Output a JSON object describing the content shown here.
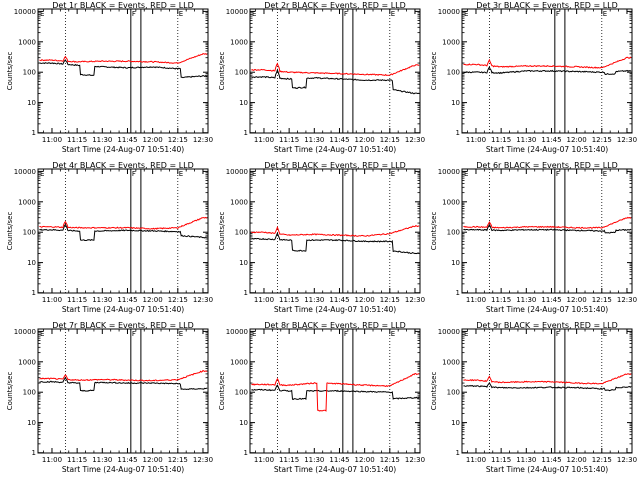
{
  "figure": {
    "background": "#ffffff",
    "axis_color": "#000000",
    "events_color": "#000000",
    "lld_color": "#ff0000"
  },
  "chart_data": [
    {
      "type": "line",
      "detector": "1r",
      "title": "Det 1r BLACK = Events, RED = LLD",
      "xlabel": "Start Time (24-Aug-07 10:51:40)",
      "ylabel": "Counts/sec",
      "x_tick_labels": [
        "11:00",
        "11:15",
        "11:30",
        "11:45",
        "12:00",
        "12:15",
        "12:30"
      ],
      "x_tick_minutes": [
        0,
        15,
        30,
        45,
        60,
        75,
        90
      ],
      "xlim_minutes": [
        -8.33,
        93
      ],
      "y_scale": "log",
      "ylim": [
        1,
        12000
      ],
      "y_tick_labels": [
        "1",
        "10",
        "100",
        "1000",
        "10000"
      ],
      "vertical_markers": {
        "dotted_minutes": [
          8,
          75
        ],
        "solid_minutes": [
          47,
          53
        ],
        "flags": [
          {
            "minute": 47,
            "label": "F"
          },
          {
            "minute": 75,
            "label": "E"
          }
        ]
      },
      "corner_labels": {
        "top_left": "E"
      },
      "series": [
        {
          "name": "Events",
          "values_at_ticks": [
            200,
            170,
            150,
            140,
            150,
            130,
            150
          ],
          "events": [
            {
              "type": "dip",
              "start": 17,
              "end": 25,
              "factor": 0.5
            },
            {
              "type": "step",
              "start": 77,
              "end": 93,
              "factor": 0.5
            },
            {
              "type": "spike",
              "at": 8,
              "factor": 1.4
            }
          ]
        },
        {
          "name": "LLD",
          "values_at_ticks": [
            250,
            220,
            230,
            230,
            220,
            200,
            400
          ],
          "events": [
            {
              "type": "spike",
              "at": 8,
              "factor": 1.4
            }
          ]
        }
      ]
    },
    {
      "type": "line",
      "detector": "2r",
      "title": "Det 2r BLACK = Events, RED = LLD",
      "xlabel": "Start Time (24-Aug-07 10:51:40)",
      "ylabel": "Counts/sec",
      "x_tick_labels": [
        "11:00",
        "11:15",
        "11:30",
        "11:45",
        "12:00",
        "12:15",
        "12:30"
      ],
      "x_tick_minutes": [
        0,
        15,
        30,
        45,
        60,
        75,
        90
      ],
      "xlim_minutes": [
        -8.33,
        93
      ],
      "y_scale": "log",
      "ylim": [
        1,
        12000
      ],
      "y_tick_labels": [
        "1",
        "10",
        "100",
        "1000",
        "10000"
      ],
      "vertical_markers": {
        "dotted_minutes": [
          8,
          75
        ],
        "solid_minutes": [
          47,
          53
        ],
        "flags": [
          {
            "minute": 47,
            "label": "F"
          },
          {
            "minute": 75,
            "label": "E"
          }
        ]
      },
      "corner_labels": {
        "top_left": "E"
      },
      "series": [
        {
          "name": "Events",
          "values_at_ticks": [
            70,
            60,
            65,
            60,
            55,
            55,
            40
          ],
          "events": [
            {
              "type": "dip",
              "start": 17,
              "end": 25,
              "factor": 0.5
            },
            {
              "type": "step",
              "start": 77,
              "end": 93,
              "factor": 0.5
            },
            {
              "type": "spike",
              "at": 8,
              "factor": 1.8
            }
          ]
        },
        {
          "name": "LLD",
          "values_at_ticks": [
            120,
            100,
            95,
            90,
            85,
            80,
            170
          ],
          "events": [
            {
              "type": "spike",
              "at": 8,
              "factor": 1.8
            }
          ]
        }
      ]
    },
    {
      "type": "line",
      "detector": "3r",
      "title": "Det 3r BLACK = Events, RED = LLD",
      "xlabel": "Start Time (24-Aug-07 10:51:40)",
      "ylabel": "Counts/sec",
      "x_tick_labels": [
        "11:00",
        "11:15",
        "11:30",
        "11:45",
        "12:00",
        "12:15",
        "12:30"
      ],
      "x_tick_minutes": [
        0,
        15,
        30,
        45,
        60,
        75,
        90
      ],
      "xlim_minutes": [
        -8.33,
        93
      ],
      "y_scale": "log",
      "ylim": [
        1,
        12000
      ],
      "y_tick_labels": [
        "1",
        "10",
        "100",
        "1000",
        "10000"
      ],
      "vertical_markers": {
        "dotted_minutes": [
          8,
          75
        ],
        "solid_minutes": [
          47,
          53
        ],
        "flags": [
          {
            "minute": 47,
            "label": "F"
          },
          {
            "minute": 75,
            "label": "E"
          }
        ]
      },
      "corner_labels": {
        "top_left": "E"
      },
      "series": [
        {
          "name": "Events",
          "values_at_ticks": [
            100,
            95,
            110,
            110,
            105,
            100,
            110
          ],
          "events": [
            {
              "type": "spike",
              "at": 8,
              "factor": 1.5
            },
            {
              "type": "step",
              "start": 77,
              "end": 83,
              "factor": 0.85
            }
          ]
        },
        {
          "name": "LLD",
          "values_at_ticks": [
            180,
            150,
            160,
            160,
            150,
            140,
            300
          ],
          "events": [
            {
              "type": "spike",
              "at": 8,
              "factor": 1.5
            }
          ]
        }
      ]
    },
    {
      "type": "line",
      "detector": "4r",
      "title": "Det 4r BLACK = Events, RED = LLD",
      "xlabel": "Start Time (24-Aug-07 10:51:40)",
      "ylabel": "Counts/sec",
      "x_tick_labels": [
        "11:00",
        "11:15",
        "11:30",
        "11:45",
        "12:00",
        "12:15",
        "12:30"
      ],
      "x_tick_minutes": [
        0,
        15,
        30,
        45,
        60,
        75,
        90
      ],
      "xlim_minutes": [
        -8.33,
        93
      ],
      "y_scale": "log",
      "ylim": [
        1,
        12000
      ],
      "y_tick_labels": [
        "1",
        "10",
        "100",
        "1000",
        "10000"
      ],
      "vertical_markers": {
        "dotted_minutes": [
          8,
          75
        ],
        "solid_minutes": [
          47,
          53
        ],
        "flags": [
          {
            "minute": 47,
            "label": "F"
          },
          {
            "minute": 75,
            "label": "E"
          }
        ]
      },
      "corner_labels": {
        "top_left": "E"
      },
      "series": [
        {
          "name": "Events",
          "values_at_ticks": [
            120,
            110,
            110,
            115,
            110,
            105,
            90
          ],
          "events": [
            {
              "type": "dip",
              "start": 17,
              "end": 25,
              "factor": 0.5
            },
            {
              "type": "step",
              "start": 77,
              "end": 93,
              "factor": 0.75
            },
            {
              "type": "spike",
              "at": 8,
              "factor": 1.6
            }
          ]
        },
        {
          "name": "LLD",
          "values_at_ticks": [
            150,
            140,
            140,
            140,
            130,
            140,
            300
          ],
          "events": [
            {
              "type": "spike",
              "at": 8,
              "factor": 1.6
            }
          ]
        }
      ]
    },
    {
      "type": "line",
      "detector": "5r",
      "title": "Det 5r BLACK = Events, RED = LLD",
      "xlabel": "Start Time (24-Aug-07 10:51:40)",
      "ylabel": "Counts/sec",
      "x_tick_labels": [
        "11:00",
        "11:15",
        "11:30",
        "11:45",
        "12:00",
        "12:15",
        "12:30"
      ],
      "x_tick_minutes": [
        0,
        15,
        30,
        45,
        60,
        75,
        90
      ],
      "xlim_minutes": [
        -8.33,
        93
      ],
      "y_scale": "log",
      "ylim": [
        1,
        12000
      ],
      "y_tick_labels": [
        "1",
        "10",
        "100",
        "1000",
        "10000"
      ],
      "vertical_markers": {
        "dotted_minutes": [
          8,
          75
        ],
        "solid_minutes": [
          47,
          53
        ],
        "flags": [
          {
            "minute": 47,
            "label": "F"
          },
          {
            "minute": 75,
            "label": "E"
          }
        ]
      },
      "corner_labels": {
        "top_left": "E"
      },
      "series": [
        {
          "name": "Events",
          "values_at_ticks": [
            60,
            55,
            55,
            55,
            50,
            50,
            40
          ],
          "events": [
            {
              "type": "dip",
              "start": 17,
              "end": 25,
              "factor": 0.45
            },
            {
              "type": "step",
              "start": 77,
              "end": 93,
              "factor": 0.5
            },
            {
              "type": "spike",
              "at": 8,
              "factor": 1.6
            }
          ]
        },
        {
          "name": "LLD",
          "values_at_ticks": [
            100,
            80,
            85,
            80,
            75,
            90,
            160
          ],
          "events": [
            {
              "type": "spike",
              "at": 8,
              "factor": 1.6
            }
          ]
        }
      ]
    },
    {
      "type": "line",
      "detector": "6r",
      "title": "Det 6r BLACK = Events, RED = LLD",
      "xlabel": "Start Time (24-Aug-07 10:51:40)",
      "ylabel": "Counts/sec",
      "x_tick_labels": [
        "11:00",
        "11:15",
        "11:30",
        "11:45",
        "12:00",
        "12:15",
        "12:30"
      ],
      "x_tick_minutes": [
        0,
        15,
        30,
        45,
        60,
        75,
        90
      ],
      "xlim_minutes": [
        -8.33,
        93
      ],
      "y_scale": "log",
      "ylim": [
        1,
        12000
      ],
      "y_tick_labels": [
        "1",
        "10",
        "100",
        "1000",
        "10000"
      ],
      "vertical_markers": {
        "dotted_minutes": [
          8,
          75
        ],
        "solid_minutes": [
          47,
          53
        ],
        "flags": [
          {
            "minute": 47,
            "label": "F"
          },
          {
            "minute": 75,
            "label": "E"
          }
        ]
      },
      "corner_labels": {
        "top_left": "E"
      },
      "series": [
        {
          "name": "Events",
          "values_at_ticks": [
            120,
            115,
            120,
            120,
            115,
            110,
            120
          ],
          "events": [
            {
              "type": "spike",
              "at": 8,
              "factor": 1.5
            },
            {
              "type": "step",
              "start": 77,
              "end": 83,
              "factor": 0.85
            }
          ]
        },
        {
          "name": "LLD",
          "values_at_ticks": [
            150,
            140,
            150,
            150,
            140,
            140,
            300
          ],
          "events": [
            {
              "type": "spike",
              "at": 8,
              "factor": 1.5
            }
          ]
        }
      ]
    },
    {
      "type": "line",
      "detector": "7r",
      "title": "Det 7r BLACK = Events, RED = LLD",
      "xlabel": "Start Time (24-Aug-07 10:51:40)",
      "ylabel": "Counts/sec",
      "x_tick_labels": [
        "11:00",
        "11:15",
        "11:30",
        "11:45",
        "12:00",
        "12:15",
        "12:30"
      ],
      "x_tick_minutes": [
        0,
        15,
        30,
        45,
        60,
        75,
        90
      ],
      "xlim_minutes": [
        -8.33,
        93
      ],
      "y_scale": "log",
      "ylim": [
        1,
        12000
      ],
      "y_tick_labels": [
        "1",
        "10",
        "100",
        "1000",
        "10000"
      ],
      "vertical_markers": {
        "dotted_minutes": [
          8,
          75
        ],
        "solid_minutes": [
          47,
          53
        ],
        "flags": [
          {
            "minute": 47,
            "label": "F"
          },
          {
            "minute": 75,
            "label": "E"
          }
        ]
      },
      "corner_labels": {
        "top_left": "E"
      },
      "series": [
        {
          "name": "Events",
          "values_at_ticks": [
            220,
            200,
            210,
            200,
            200,
            190,
            200
          ],
          "events": [
            {
              "type": "dip",
              "start": 17,
              "end": 25,
              "factor": 0.55
            },
            {
              "type": "step",
              "start": 77,
              "end": 93,
              "factor": 0.65
            },
            {
              "type": "spike",
              "at": 8,
              "factor": 1.4
            }
          ]
        },
        {
          "name": "LLD",
          "values_at_ticks": [
            280,
            250,
            260,
            250,
            240,
            260,
            500
          ],
          "events": [
            {
              "type": "spike",
              "at": 8,
              "factor": 1.4
            }
          ]
        }
      ]
    },
    {
      "type": "line",
      "detector": "8r",
      "title": "Det 8r BLACK = Events, RED = LLD",
      "xlabel": "Start Time (24-Aug-07 10:51:40)",
      "ylabel": "Counts/sec",
      "x_tick_labels": [
        "11:00",
        "11:15",
        "11:30",
        "11:45",
        "12:00",
        "12:15",
        "12:30"
      ],
      "x_tick_minutes": [
        0,
        15,
        30,
        45,
        60,
        75,
        90
      ],
      "xlim_minutes": [
        -8.33,
        93
      ],
      "y_scale": "log",
      "ylim": [
        1,
        12000
      ],
      "y_tick_labels": [
        "1",
        "10",
        "100",
        "1000",
        "10000"
      ],
      "vertical_markers": {
        "dotted_minutes": [
          8,
          75
        ],
        "solid_minutes": [
          47,
          53
        ],
        "flags": [
          {
            "minute": 47,
            "label": "F"
          },
          {
            "minute": 75,
            "label": "E"
          }
        ]
      },
      "corner_labels": {
        "top_left": "E"
      },
      "series": [
        {
          "name": "Events",
          "values_at_ticks": [
            120,
            110,
            110,
            110,
            105,
            100,
            110
          ],
          "events": [
            {
              "type": "dip",
              "start": 17,
              "end": 25,
              "factor": 0.55
            },
            {
              "type": "step",
              "start": 77,
              "end": 93,
              "factor": 0.6
            },
            {
              "type": "spike",
              "at": 8,
              "factor": 1.5
            }
          ]
        },
        {
          "name": "LLD",
          "values_at_ticks": [
            180,
            170,
            200,
            190,
            170,
            160,
            400
          ],
          "events": [
            {
              "type": "spike",
              "at": 8,
              "factor": 1.6
            },
            {
              "type": "dip",
              "start": 32,
              "end": 37,
              "value": 25
            }
          ]
        }
      ]
    },
    {
      "type": "line",
      "detector": "9r",
      "title": "Det 9r BLACK = Events, RED = LLD",
      "xlabel": "Start Time (24-Aug-07 10:51:40)",
      "ylabel": "Counts/sec",
      "x_tick_labels": [
        "11:00",
        "11:15",
        "11:30",
        "11:45",
        "12:00",
        "12:15",
        "12:30"
      ],
      "x_tick_minutes": [
        0,
        15,
        30,
        45,
        60,
        75,
        90
      ],
      "xlim_minutes": [
        -8.33,
        93
      ],
      "y_scale": "log",
      "ylim": [
        1,
        12000
      ],
      "y_tick_labels": [
        "1",
        "10",
        "100",
        "1000",
        "10000"
      ],
      "vertical_markers": {
        "dotted_minutes": [
          8,
          75
        ],
        "solid_minutes": [
          47,
          53
        ],
        "flags": [
          {
            "minute": 47,
            "label": "F"
          },
          {
            "minute": 75,
            "label": "E"
          }
        ]
      },
      "corner_labels": {
        "top_left": "E"
      },
      "series": [
        {
          "name": "Events",
          "values_at_ticks": [
            160,
            140,
            140,
            145,
            140,
            130,
            150
          ],
          "events": [
            {
              "type": "spike",
              "at": 8,
              "factor": 1.4
            },
            {
              "type": "step",
              "start": 77,
              "end": 83,
              "factor": 0.85
            }
          ]
        },
        {
          "name": "LLD",
          "values_at_ticks": [
            250,
            210,
            220,
            220,
            200,
            190,
            400
          ],
          "events": [
            {
              "type": "spike",
              "at": 8,
              "factor": 1.4
            }
          ]
        }
      ]
    }
  ]
}
